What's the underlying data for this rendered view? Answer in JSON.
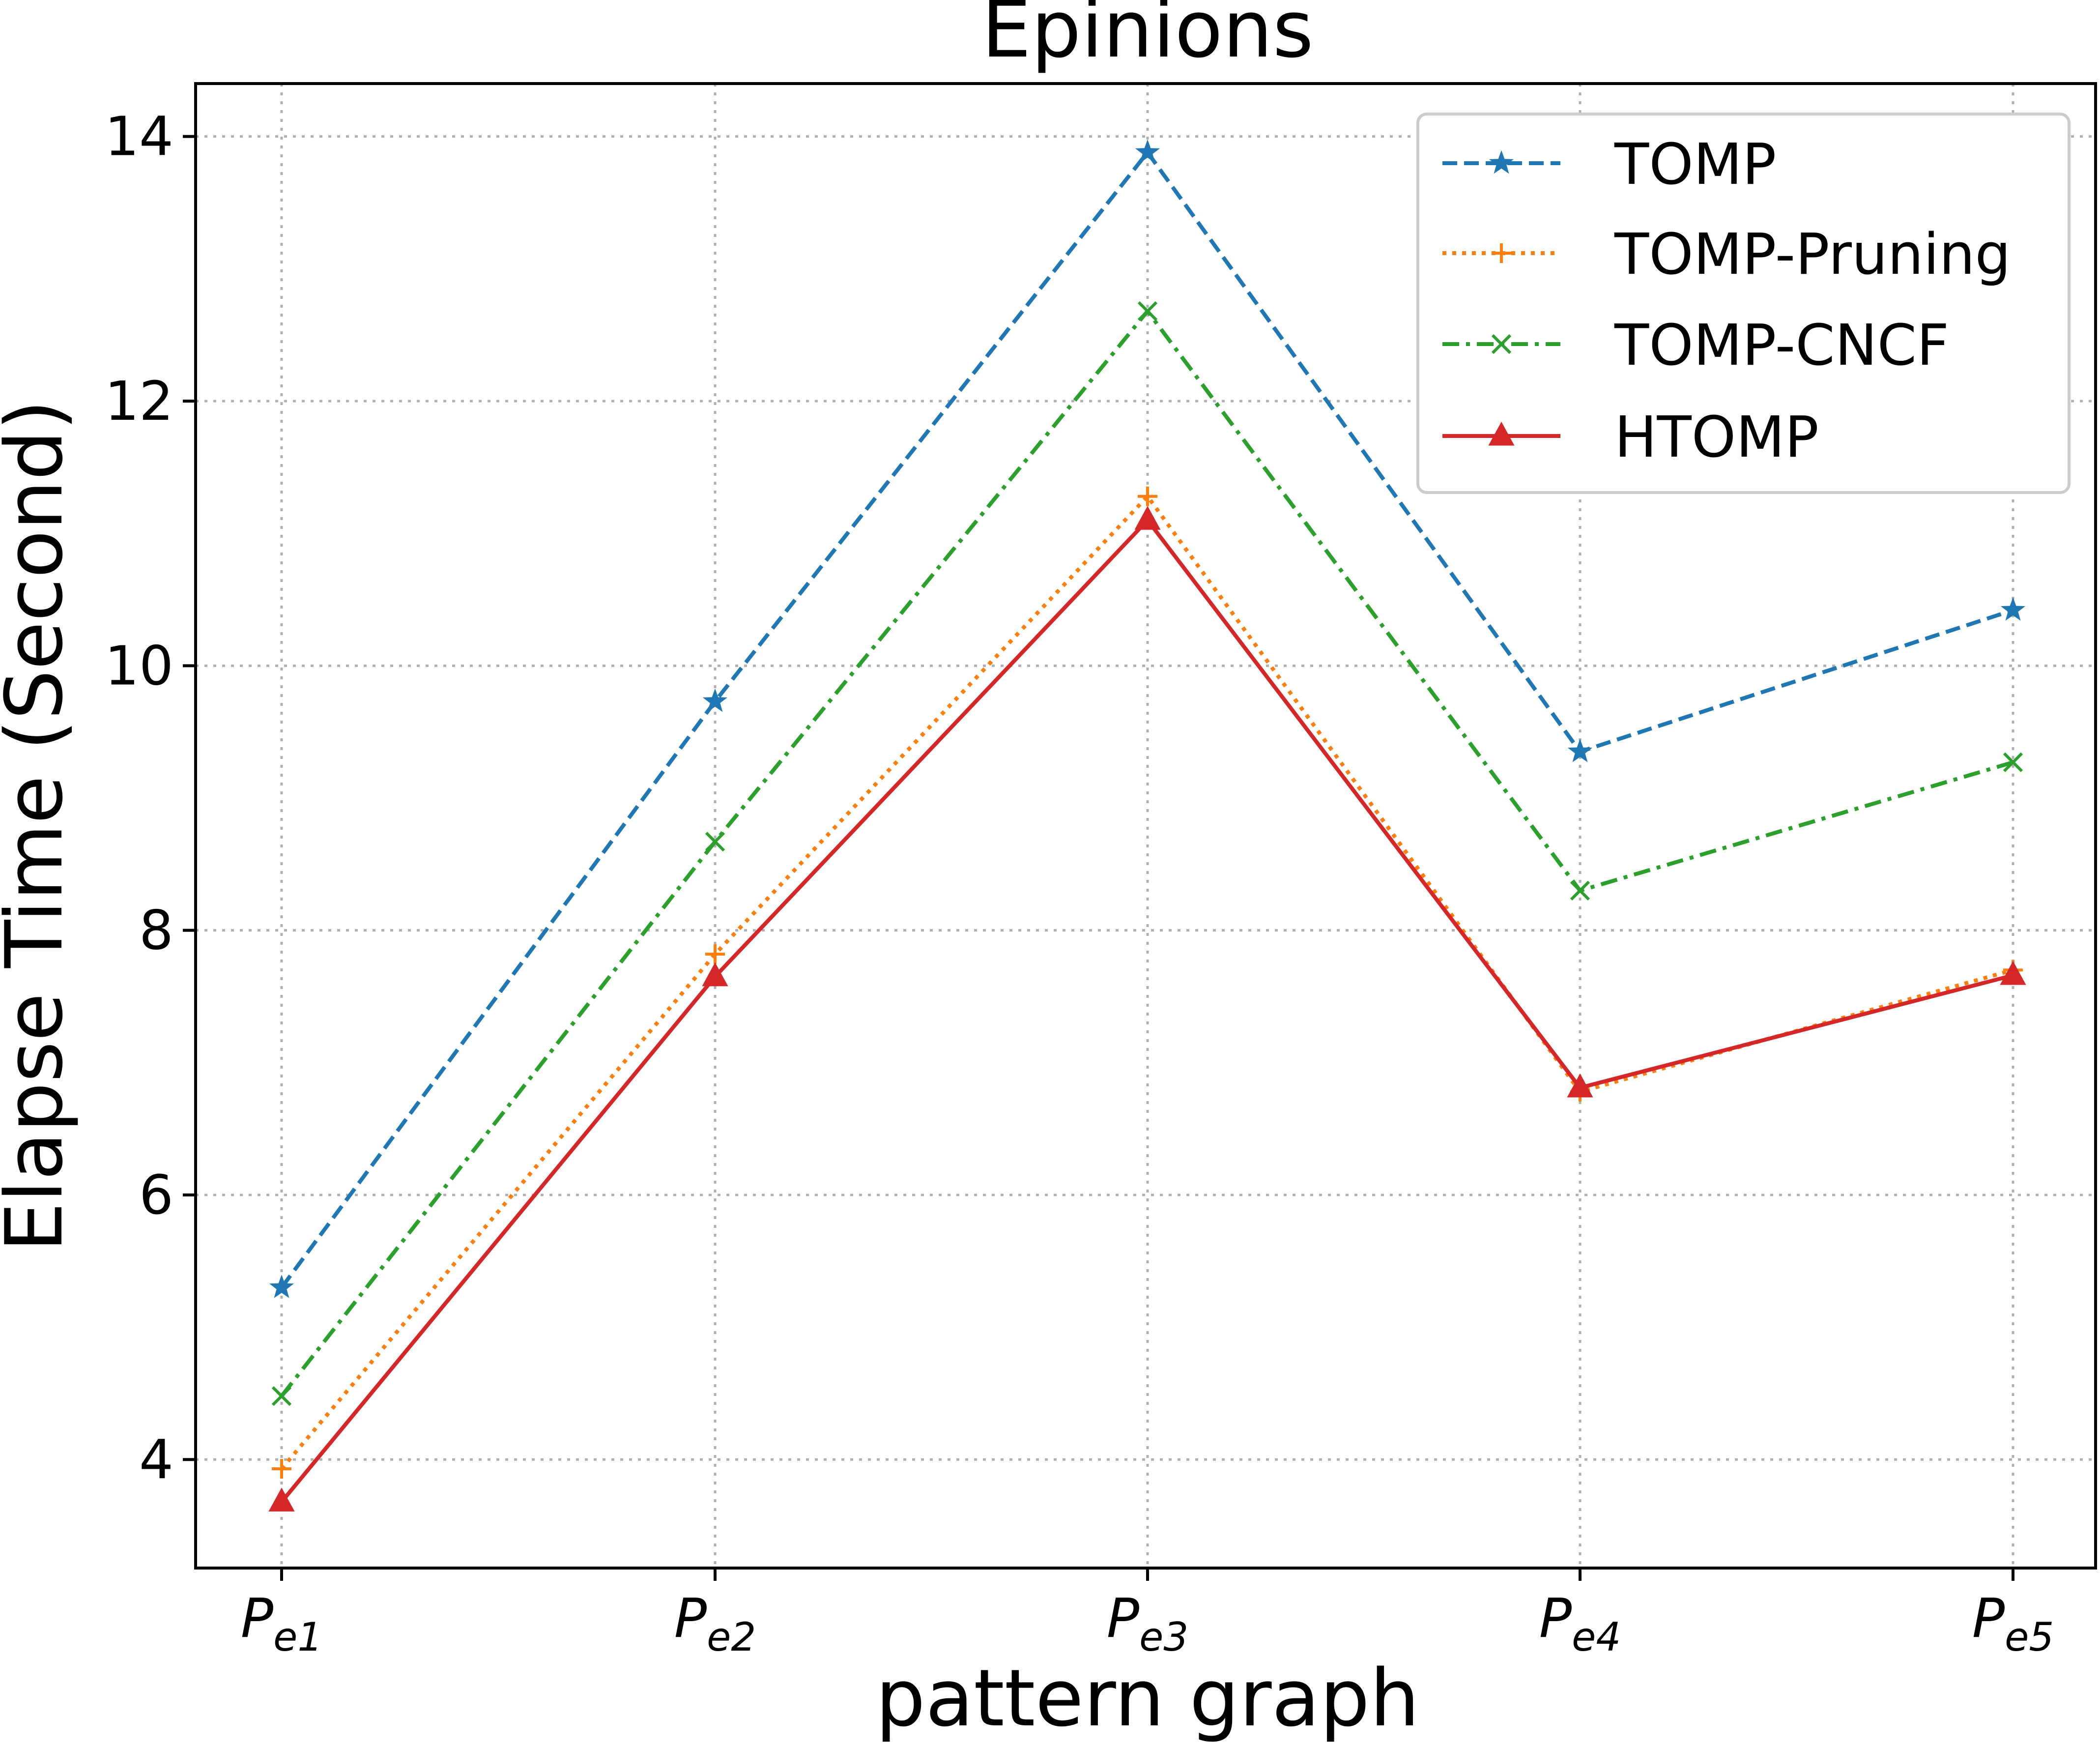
{
  "chart_data": {
    "type": "line",
    "title": "Epinions",
    "xlabel": "pattern graph",
    "ylabel": "Elapse Time (Second)",
    "categories": [
      {
        "base": "P",
        "sub": "e1"
      },
      {
        "base": "P",
        "sub": "e2"
      },
      {
        "base": "P",
        "sub": "e3"
      },
      {
        "base": "P",
        "sub": "e4"
      },
      {
        "base": "P",
        "sub": "e5"
      }
    ],
    "ylim": [
      3.18,
      14.4
    ],
    "yticks": [
      4,
      6,
      8,
      10,
      12,
      14
    ],
    "grid": true,
    "legend_position": "top-right",
    "series": [
      {
        "name": "TOMP",
        "color": "#1f77b4",
        "linestyle": "dashed",
        "marker": "star",
        "values": [
          5.3,
          9.73,
          13.88,
          9.35,
          10.42
        ]
      },
      {
        "name": "TOMP-Pruning",
        "color": "#ff7f0e",
        "linestyle": "dotted",
        "marker": "plus",
        "values": [
          3.93,
          7.82,
          11.28,
          6.78,
          7.7
        ]
      },
      {
        "name": "TOMP-CNCF",
        "color": "#2ca02c",
        "linestyle": "dashdot",
        "marker": "x",
        "values": [
          4.48,
          8.67,
          12.68,
          8.3,
          9.27
        ]
      },
      {
        "name": "HTOMP",
        "color": "#d62728",
        "linestyle": "solid",
        "marker": "triangle",
        "values": [
          3.68,
          7.65,
          11.1,
          6.81,
          7.66
        ]
      }
    ]
  }
}
